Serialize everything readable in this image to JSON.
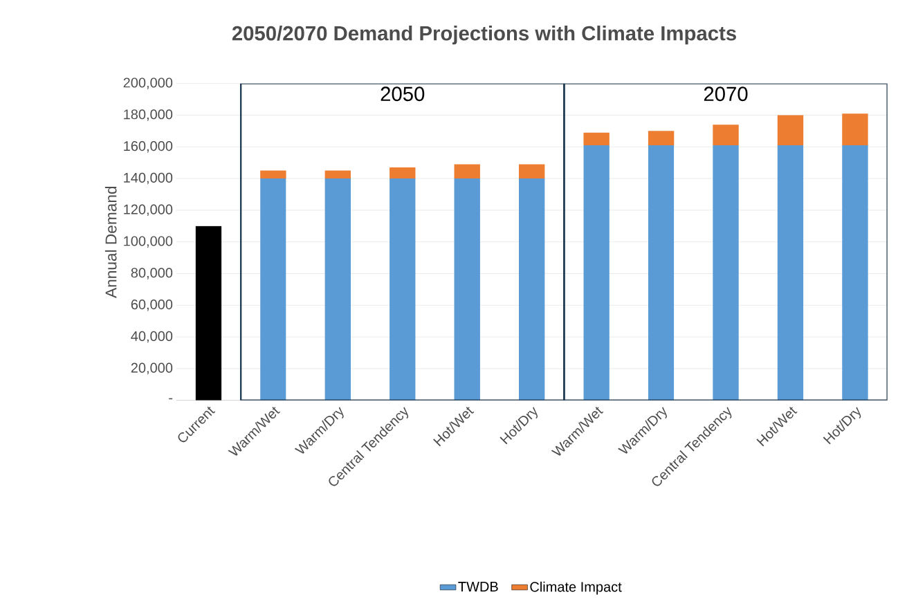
{
  "chart_data": {
    "type": "bar",
    "stacked": true,
    "title": "2050/2070 Demand Projections with Climate Impacts",
    "ylabel": "Annual Demand",
    "categories": [
      "Current",
      "Warm/Wet",
      "Warm/Dry",
      "Central Tendency",
      "Hot/Wet",
      "Hot/Dry",
      "Warm/Wet",
      "Warm/Dry",
      "Central Tendency",
      "Hot/Wet",
      "Hot/Dry"
    ],
    "series": [
      {
        "name": "TWDB",
        "color": "#5b9bd5",
        "colors": [
          "#000000",
          "#5b9bd5",
          "#5b9bd5",
          "#5b9bd5",
          "#5b9bd5",
          "#5b9bd5",
          "#5b9bd5",
          "#5b9bd5",
          "#5b9bd5",
          "#5b9bd5",
          "#5b9bd5"
        ],
        "values": [
          110000,
          140000,
          140000,
          140000,
          140000,
          140000,
          161000,
          161000,
          161000,
          161000,
          161000
        ]
      },
      {
        "name": "Climate Impact",
        "color": "#ed7d31",
        "values": [
          null,
          5000,
          5000,
          7000,
          9000,
          9000,
          8000,
          9000,
          13000,
          19000,
          20000
        ]
      }
    ],
    "ylim": [
      0,
      200000
    ],
    "yticks": [
      {
        "value": 0,
        "label": "-"
      },
      {
        "value": 20000,
        "label": "20,000"
      },
      {
        "value": 40000,
        "label": "40,000"
      },
      {
        "value": 60000,
        "label": "60,000"
      },
      {
        "value": 80000,
        "label": "80,000"
      },
      {
        "value": 100000,
        "label": "100,000"
      },
      {
        "value": 120000,
        "label": "120,000"
      },
      {
        "value": 140000,
        "label": "140,000"
      },
      {
        "value": 160000,
        "label": "160,000"
      },
      {
        "value": 180000,
        "label": "180,000"
      },
      {
        "value": 200000,
        "label": "200,000"
      }
    ],
    "annotations": [
      "2050",
      "2070"
    ],
    "grid": "y",
    "legend": "bottom"
  }
}
